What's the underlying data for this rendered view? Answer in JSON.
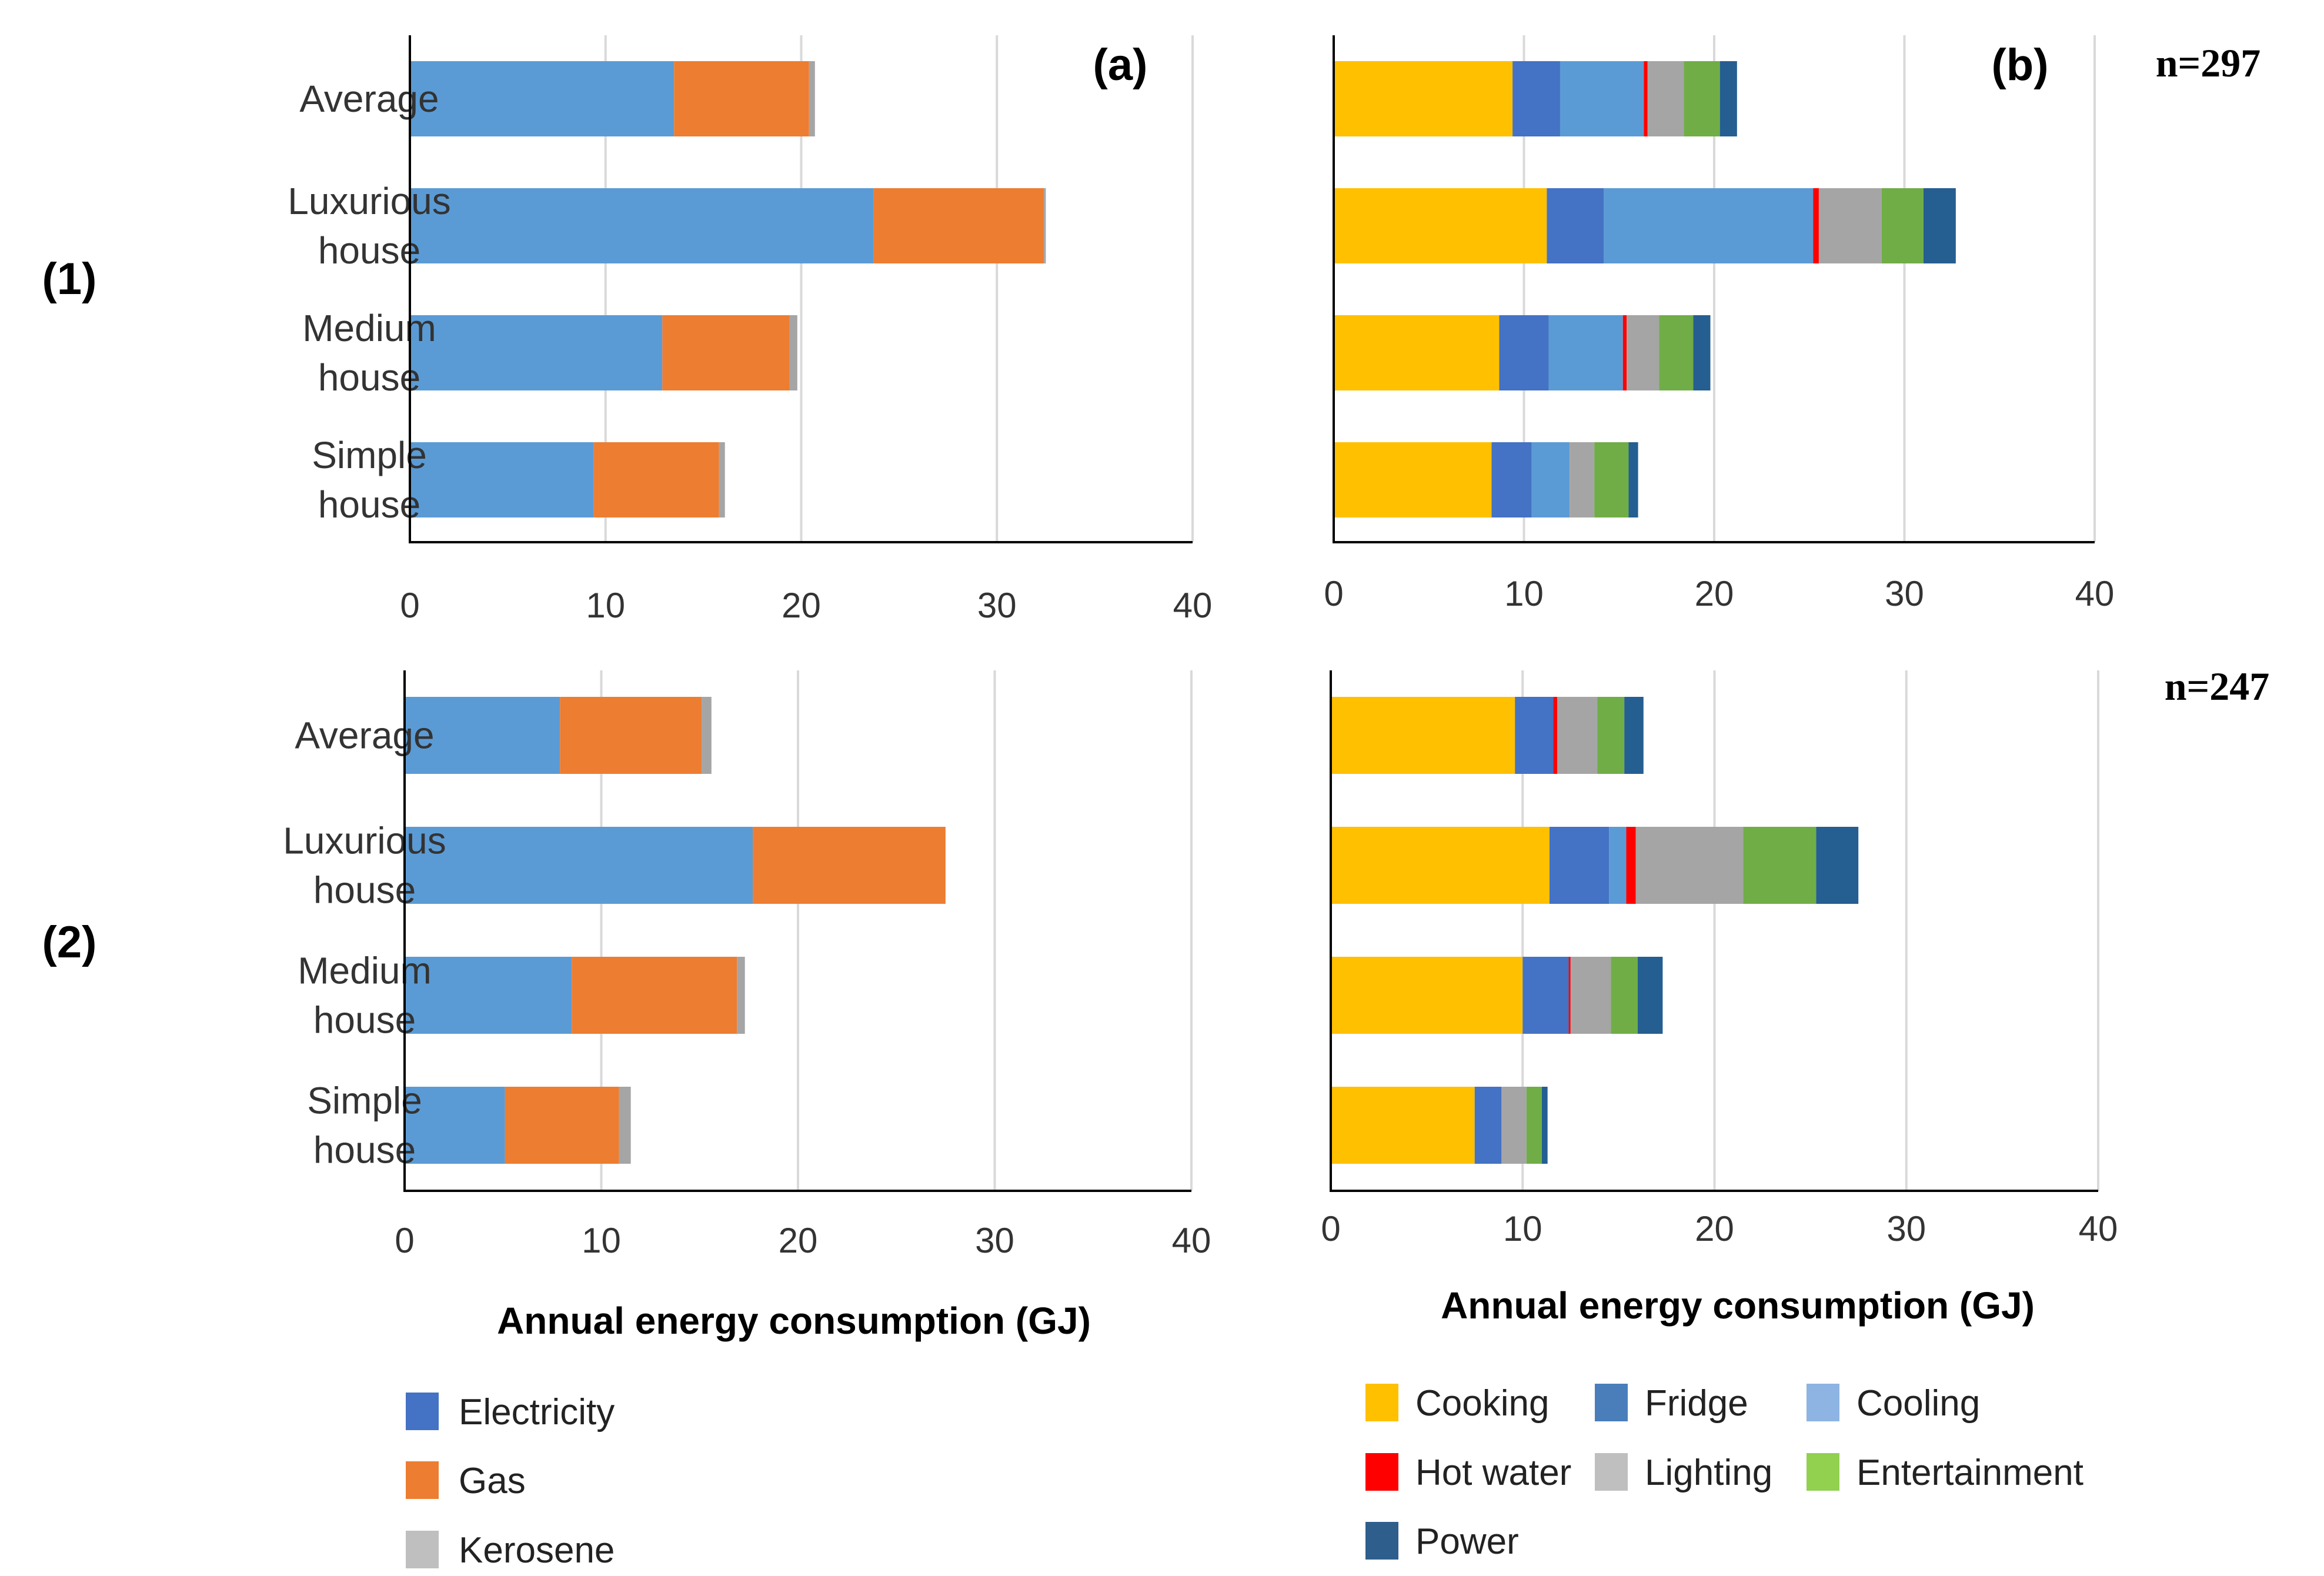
{
  "row_labels": [
    "(1)",
    "(2)"
  ],
  "panel_labels": [
    "(a)",
    "(b)"
  ],
  "sample_sizes": [
    "n=297",
    "n=247"
  ],
  "xlabel": "Annual energy consumption (GJ)",
  "colors": {
    "Electricity": "#5b9bd5",
    "Gas": "#ed7d31",
    "Kerosene": "#a5a5a5",
    "Cooking": "#ffc000",
    "Fridge": "#4472c4",
    "Cooling": "#5b9bd5",
    "Hot water": "#ff0000",
    "Lighting": "#a5a5a5",
    "Entertainment": "#70ad47",
    "Power": "#255e91",
    "grid": "#d9d9d9",
    "axis": "#000000"
  },
  "legend_a": [
    {
      "label": "Electricity",
      "color": "#4472c4"
    },
    {
      "label": "Gas",
      "color": "#ed7d31"
    },
    {
      "label": "Kerosene",
      "color": "#bfbfbf"
    }
  ],
  "legend_b": [
    {
      "label": "Cooking",
      "color": "#ffc000"
    },
    {
      "label": "Fridge",
      "color": "#4a7ebb"
    },
    {
      "label": "Cooling",
      "color": "#8db4e2"
    },
    {
      "label": "Hot water",
      "color": "#ff0000"
    },
    {
      "label": "Lighting",
      "color": "#bfbfbf"
    },
    {
      "label": "Entertainment",
      "color": "#92d050"
    },
    {
      "label": "Power",
      "color": "#2e5e8c"
    }
  ],
  "chart_data": [
    {
      "id": "1a",
      "type": "bar",
      "orientation": "horizontal",
      "stacked": true,
      "title": "(a)",
      "xlabel": "",
      "xlim": [
        0,
        40
      ],
      "xticks": [
        0,
        10,
        20,
        30,
        40
      ],
      "categories": [
        [
          "Average"
        ],
        [
          "Luxurious",
          "house"
        ],
        [
          "Medium",
          "house"
        ],
        [
          "Simple",
          "house"
        ]
      ],
      "series": [
        {
          "name": "Electricity",
          "values": [
            13.5,
            23.7,
            12.9,
            9.4
          ]
        },
        {
          "name": "Gas",
          "values": [
            6.9,
            8.7,
            6.5,
            6.4
          ]
        },
        {
          "name": "Kerosene",
          "values": [
            0.3,
            0.1,
            0.4,
            0.3
          ]
        }
      ]
    },
    {
      "id": "1b",
      "type": "bar",
      "orientation": "horizontal",
      "stacked": true,
      "title": "(b)",
      "annotation": "n=297",
      "xlabel": "",
      "xlim": [
        0,
        40
      ],
      "xticks": [
        0,
        10,
        20,
        30,
        40
      ],
      "categories": [
        "Average",
        "Luxurious house",
        "Medium house",
        "Simple house"
      ],
      "series": [
        {
          "name": "Cooking",
          "values": [
            9.4,
            11.2,
            8.7,
            8.3
          ]
        },
        {
          "name": "Fridge",
          "values": [
            2.5,
            3.0,
            2.6,
            2.1
          ]
        },
        {
          "name": "Cooling",
          "values": [
            4.4,
            11.0,
            3.9,
            2.0
          ]
        },
        {
          "name": "Hot water",
          "values": [
            0.2,
            0.3,
            0.2,
            0.0
          ]
        },
        {
          "name": "Lighting",
          "values": [
            1.9,
            3.3,
            1.7,
            1.3
          ]
        },
        {
          "name": "Entertainment",
          "values": [
            1.9,
            2.2,
            1.8,
            1.8
          ]
        },
        {
          "name": "Power",
          "values": [
            0.9,
            1.7,
            0.9,
            0.5
          ]
        }
      ]
    },
    {
      "id": "2a",
      "type": "bar",
      "orientation": "horizontal",
      "stacked": true,
      "title": "",
      "xlabel": "Annual energy consumption (GJ)",
      "xlim": [
        0,
        40
      ],
      "xticks": [
        0,
        10,
        20,
        30,
        40
      ],
      "categories": [
        [
          "Average"
        ],
        [
          "Luxurious",
          "house"
        ],
        [
          "Medium",
          "house"
        ],
        [
          "Simple",
          "house"
        ]
      ],
      "series": [
        {
          "name": "Electricity",
          "values": [
            7.9,
            17.7,
            8.5,
            5.1
          ]
        },
        {
          "name": "Gas",
          "values": [
            7.2,
            9.8,
            8.4,
            5.8
          ]
        },
        {
          "name": "Kerosene",
          "values": [
            0.5,
            0.0,
            0.4,
            0.6
          ]
        }
      ]
    },
    {
      "id": "2b",
      "type": "bar",
      "orientation": "horizontal",
      "stacked": true,
      "title": "",
      "annotation": "n=247",
      "xlabel": "Annual energy consumption (GJ)",
      "xlim": [
        0,
        40
      ],
      "xticks": [
        0,
        10,
        20,
        30,
        40
      ],
      "categories": [
        "Average",
        "Luxurious house",
        "Medium house",
        "Simple house"
      ],
      "series": [
        {
          "name": "Cooking",
          "values": [
            9.6,
            11.4,
            10.0,
            7.5
          ]
        },
        {
          "name": "Fridge",
          "values": [
            2.0,
            3.1,
            2.4,
            1.4
          ]
        },
        {
          "name": "Cooling",
          "values": [
            0.0,
            0.9,
            0.0,
            0.0
          ]
        },
        {
          "name": "Hot water",
          "values": [
            0.2,
            0.5,
            0.1,
            0.0
          ]
        },
        {
          "name": "Lighting",
          "values": [
            2.1,
            5.6,
            2.1,
            1.3
          ]
        },
        {
          "name": "Entertainment",
          "values": [
            1.4,
            3.8,
            1.4,
            0.8
          ]
        },
        {
          "name": "Power",
          "values": [
            1.0,
            2.2,
            1.3,
            0.3
          ]
        }
      ]
    }
  ]
}
